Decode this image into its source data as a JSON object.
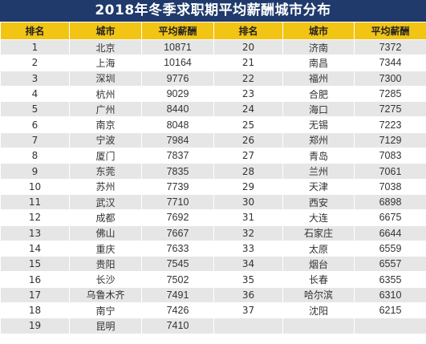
{
  "title": "2018年冬季求职期平均薪酬城市分布",
  "headers": [
    "排名",
    "城市",
    "平均薪酬",
    "排名",
    "城市",
    "平均薪酬"
  ],
  "colors": {
    "title_bg": "#1f3a6b",
    "header_bg": "#f2c414",
    "stripe": "#e6e6e6"
  },
  "rows": [
    {
      "r1": "1",
      "c1": "北京",
      "s1": "10871",
      "r2": "20",
      "c2": "济南",
      "s2": "7372"
    },
    {
      "r1": "2",
      "c1": "上海",
      "s1": "10164",
      "r2": "21",
      "c2": "南昌",
      "s2": "7344"
    },
    {
      "r1": "3",
      "c1": "深圳",
      "s1": "9776",
      "r2": "22",
      "c2": "福州",
      "s2": "7300"
    },
    {
      "r1": "4",
      "c1": "杭州",
      "s1": "9029",
      "r2": "23",
      "c2": "合肥",
      "s2": "7285"
    },
    {
      "r1": "5",
      "c1": "广州",
      "s1": "8440",
      "r2": "24",
      "c2": "海口",
      "s2": "7275"
    },
    {
      "r1": "6",
      "c1": "南京",
      "s1": "8048",
      "r2": "25",
      "c2": "无锡",
      "s2": "7223"
    },
    {
      "r1": "7",
      "c1": "宁波",
      "s1": "7984",
      "r2": "26",
      "c2": "郑州",
      "s2": "7129"
    },
    {
      "r1": "8",
      "c1": "厦门",
      "s1": "7837",
      "r2": "27",
      "c2": "青岛",
      "s2": "7083"
    },
    {
      "r1": "9",
      "c1": "东莞",
      "s1": "7835",
      "r2": "28",
      "c2": "兰州",
      "s2": "7061"
    },
    {
      "r1": "10",
      "c1": "苏州",
      "s1": "7739",
      "r2": "29",
      "c2": "天津",
      "s2": "7038"
    },
    {
      "r1": "11",
      "c1": "武汉",
      "s1": "7710",
      "r2": "30",
      "c2": "西安",
      "s2": "6898"
    },
    {
      "r1": "12",
      "c1": "成都",
      "s1": "7692",
      "r2": "31",
      "c2": "大连",
      "s2": "6675"
    },
    {
      "r1": "13",
      "c1": "佛山",
      "s1": "7667",
      "r2": "32",
      "c2": "石家庄",
      "s2": "6644"
    },
    {
      "r1": "14",
      "c1": "重庆",
      "s1": "7633",
      "r2": "33",
      "c2": "太原",
      "s2": "6559"
    },
    {
      "r1": "15",
      "c1": "贵阳",
      "s1": "7545",
      "r2": "34",
      "c2": "烟台",
      "s2": "6557"
    },
    {
      "r1": "16",
      "c1": "长沙",
      "s1": "7502",
      "r2": "35",
      "c2": "长春",
      "s2": "6355"
    },
    {
      "r1": "17",
      "c1": "乌鲁木齐",
      "s1": "7491",
      "r2": "36",
      "c2": "哈尔滨",
      "s2": "6310"
    },
    {
      "r1": "18",
      "c1": "南宁",
      "s1": "7426",
      "r2": "37",
      "c2": "沈阳",
      "s2": "6215"
    },
    {
      "r1": "19",
      "c1": "昆明",
      "s1": "7410",
      "r2": "",
      "c2": "",
      "s2": ""
    }
  ]
}
